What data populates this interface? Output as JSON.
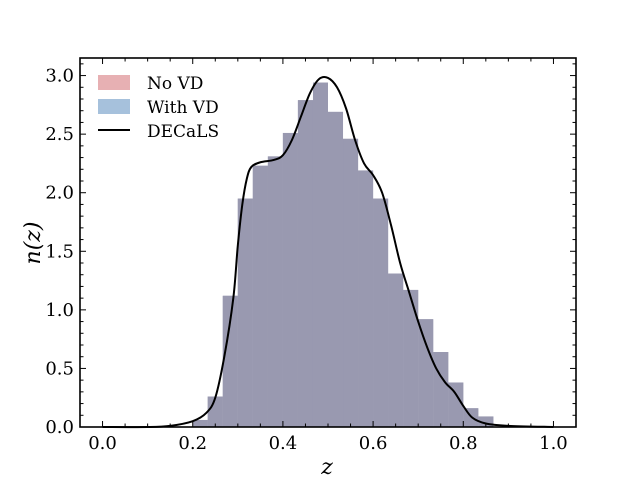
{
  "chart_data": {
    "type": "histogram",
    "title": "",
    "xlabel": "z",
    "ylabel": "n(z)",
    "xlim": [
      -0.05,
      1.05
    ],
    "ylim": [
      0,
      3.15
    ],
    "xticks": [
      0.0,
      0.2,
      0.4,
      0.6,
      0.8,
      1.0
    ],
    "xtick_labels": [
      "0.0",
      "0.2",
      "0.4",
      "0.6",
      "0.8",
      "1.0"
    ],
    "yticks": [
      0.0,
      0.5,
      1.0,
      1.5,
      2.0,
      2.5,
      3.0
    ],
    "ytick_labels": [
      "0.0",
      "0.5",
      "1.0",
      "1.5",
      "2.0",
      "2.5",
      "3.0"
    ],
    "bin_edges": [
      0.2,
      0.2333,
      0.2667,
      0.3,
      0.3333,
      0.3667,
      0.4,
      0.4333,
      0.4667,
      0.5,
      0.5333,
      0.5667,
      0.6,
      0.6333,
      0.6667,
      0.7,
      0.7333,
      0.7667,
      0.8,
      0.8333,
      0.8667
    ],
    "series": [
      {
        "name": "No VD",
        "kind": "hist",
        "color": "#d98f94",
        "values": [
          0.06,
          0.26,
          1.12,
          1.95,
          2.23,
          2.31,
          2.51,
          2.79,
          2.94,
          2.69,
          2.46,
          2.19,
          1.95,
          1.31,
          1.17,
          0.92,
          0.64,
          0.38,
          0.16,
          0.09
        ]
      },
      {
        "name": "With VD",
        "kind": "hist",
        "color": "#7fa6cc",
        "values": [
          0.06,
          0.26,
          1.12,
          1.95,
          2.23,
          2.31,
          2.51,
          2.79,
          2.94,
          2.69,
          2.46,
          2.19,
          1.95,
          1.31,
          1.17,
          0.92,
          0.64,
          0.38,
          0.16,
          0.09
        ]
      },
      {
        "name": "DECaLS",
        "kind": "line",
        "color": "#000000",
        "x": [
          0.0,
          0.1,
          0.15,
          0.2,
          0.23,
          0.25,
          0.27,
          0.29,
          0.3,
          0.31,
          0.32,
          0.33,
          0.35,
          0.38,
          0.4,
          0.42,
          0.44,
          0.46,
          0.48,
          0.5,
          0.52,
          0.54,
          0.56,
          0.58,
          0.6,
          0.62,
          0.64,
          0.66,
          0.68,
          0.7,
          0.72,
          0.74,
          0.76,
          0.78,
          0.8,
          0.82,
          0.85,
          0.9,
          1.0
        ],
        "y": [
          0.0,
          0.0,
          0.01,
          0.05,
          0.12,
          0.25,
          0.6,
          1.1,
          1.55,
          1.9,
          2.12,
          2.22,
          2.26,
          2.28,
          2.32,
          2.45,
          2.65,
          2.85,
          2.97,
          2.98,
          2.9,
          2.72,
          2.45,
          2.25,
          2.15,
          2.0,
          1.72,
          1.4,
          1.15,
          0.9,
          0.68,
          0.5,
          0.38,
          0.3,
          0.18,
          0.08,
          0.03,
          0.01,
          0.0
        ]
      }
    ],
    "legend": {
      "position": "top-left",
      "entries": [
        "No VD",
        "With VD",
        "DECaLS"
      ]
    },
    "overlap_color": "#9999b0",
    "grid": false
  }
}
